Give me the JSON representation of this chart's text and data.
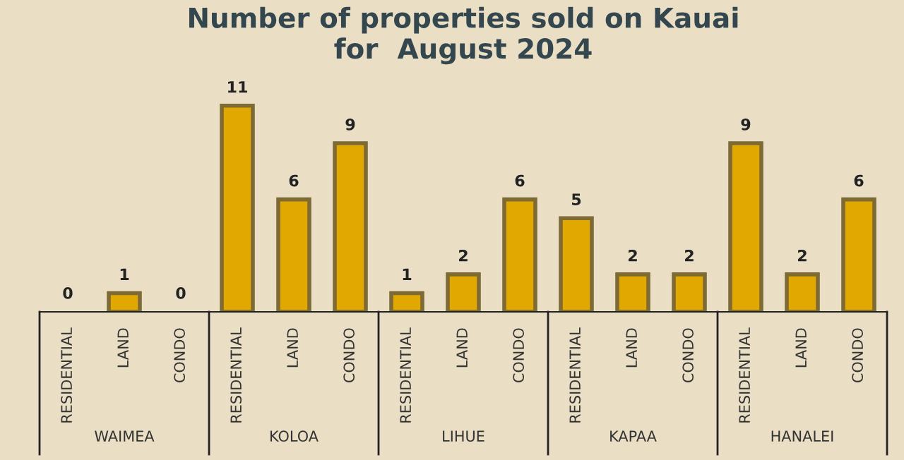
{
  "chart_data": {
    "type": "bar",
    "title": "Number of properties sold on Kauai\nfor  August 2024",
    "categories": [
      "RESIDENTIAL",
      "LAND",
      "CONDO",
      "RESIDENTIAL",
      "LAND",
      "CONDO",
      "RESIDENTIAL",
      "LAND",
      "CONDO",
      "RESIDENTIAL",
      "LAND",
      "CONDO",
      "RESIDENTIAL",
      "LAND",
      "CONDO"
    ],
    "values": [
      0,
      1,
      0,
      11,
      6,
      9,
      1,
      2,
      6,
      5,
      2,
      2,
      9,
      2,
      6
    ],
    "color": "#e0a800",
    "data_labels": true,
    "annotations": [
      "WAIMEA",
      "KOLOA",
      "LIHUE",
      "KAPAA",
      "HANALEI"
    ]
  }
}
